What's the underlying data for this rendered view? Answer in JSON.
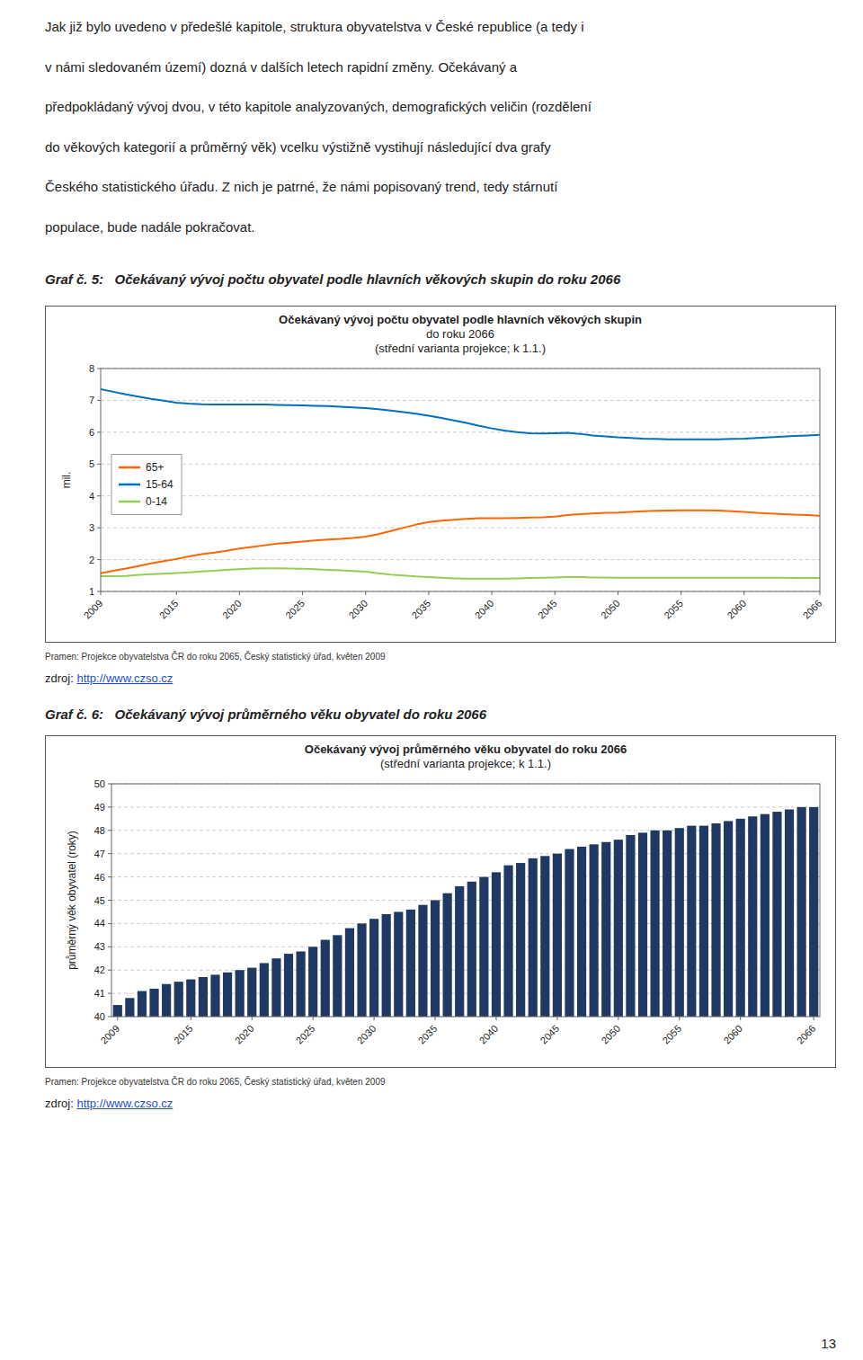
{
  "paragraph": [
    "Jak již bylo uvedeno v předešlé kapitole, struktura obyvatelstva v České republice (a tedy i",
    "v námi sledovaném území) dozná v dalších letech rapidní změny. Očekávaný a",
    "předpokládaný vývoj dvou, v této kapitole analyzovaných, demografických veličin (rozdělení",
    "do věkových kategorií a průměrný věk) vcelku výstižně vystihují následující dva grafy",
    "Českého statistického úřadu. Z nich je patrné, že námi popisovaný trend, tedy stárnutí",
    "populace, bude nadále pokračovat."
  ],
  "page_number": "13",
  "chart_data": [
    {
      "type": "line",
      "caption": "Graf č. 5:   Očekávaný vývoj počtu obyvatel podle hlavních věkových skupin do roku 2066",
      "title": [
        "Očekávaný vývoj počtu obyvatel podle hlavních věkových skupin",
        "do roku 2066",
        "(střední varianta projekce; k 1.1.)"
      ],
      "ylabel": "mil.",
      "source": "Pramen: Projekce obyvatelstva ČR do roku 2065, Český statistický úřad, květen 2009",
      "link_label": "zdroj: ",
      "link": "http://www.czso.cz",
      "x": [
        2009,
        2010,
        2011,
        2012,
        2013,
        2014,
        2015,
        2016,
        2017,
        2018,
        2019,
        2020,
        2021,
        2022,
        2023,
        2024,
        2025,
        2026,
        2027,
        2028,
        2029,
        2030,
        2031,
        2032,
        2033,
        2034,
        2035,
        2036,
        2037,
        2038,
        2039,
        2040,
        2041,
        2042,
        2043,
        2044,
        2045,
        2046,
        2047,
        2048,
        2049,
        2050,
        2051,
        2052,
        2053,
        2054,
        2055,
        2056,
        2057,
        2058,
        2059,
        2060,
        2061,
        2062,
        2063,
        2064,
        2065,
        2066
      ],
      "xlim": [
        2009,
        2066
      ],
      "xticks": [
        2009,
        2015,
        2020,
        2025,
        2030,
        2035,
        2040,
        2045,
        2050,
        2055,
        2060,
        2066
      ],
      "ylim": [
        1,
        8
      ],
      "yticks": [
        1,
        2,
        3,
        4,
        5,
        6,
        7,
        8
      ],
      "grid": true,
      "legend": "left",
      "series": [
        {
          "name": "65+",
          "color": "#FF6600",
          "values": [
            1.57,
            1.65,
            1.72,
            1.8,
            1.88,
            1.95,
            2.02,
            2.1,
            2.17,
            2.22,
            2.28,
            2.35,
            2.4,
            2.45,
            2.5,
            2.53,
            2.57,
            2.6,
            2.63,
            2.65,
            2.68,
            2.72,
            2.8,
            2.9,
            3.0,
            3.1,
            3.18,
            3.22,
            3.25,
            3.28,
            3.3,
            3.3,
            3.3,
            3.31,
            3.32,
            3.33,
            3.35,
            3.4,
            3.43,
            3.45,
            3.47,
            3.48,
            3.5,
            3.52,
            3.53,
            3.54,
            3.55,
            3.55,
            3.55,
            3.54,
            3.52,
            3.5,
            3.47,
            3.45,
            3.43,
            3.41,
            3.4,
            3.38
          ]
        },
        {
          "name": "15-64",
          "color": "#0070C0",
          "values": [
            7.35,
            7.27,
            7.19,
            7.12,
            7.05,
            6.99,
            6.93,
            6.9,
            6.88,
            6.87,
            6.87,
            6.87,
            6.87,
            6.87,
            6.86,
            6.85,
            6.84,
            6.83,
            6.82,
            6.8,
            6.78,
            6.76,
            6.72,
            6.68,
            6.63,
            6.58,
            6.52,
            6.45,
            6.37,
            6.29,
            6.2,
            6.12,
            6.05,
            6.0,
            5.97,
            5.96,
            5.97,
            5.98,
            5.95,
            5.9,
            5.87,
            5.84,
            5.82,
            5.8,
            5.79,
            5.78,
            5.78,
            5.78,
            5.78,
            5.78,
            5.79,
            5.8,
            5.82,
            5.84,
            5.86,
            5.88,
            5.9,
            5.92
          ]
        },
        {
          "name": "0-14",
          "color": "#92D050",
          "values": [
            1.48,
            1.48,
            1.49,
            1.52,
            1.54,
            1.56,
            1.58,
            1.6,
            1.63,
            1.65,
            1.68,
            1.7,
            1.72,
            1.73,
            1.73,
            1.72,
            1.71,
            1.7,
            1.68,
            1.66,
            1.64,
            1.62,
            1.57,
            1.53,
            1.5,
            1.47,
            1.45,
            1.43,
            1.41,
            1.4,
            1.4,
            1.4,
            1.4,
            1.41,
            1.42,
            1.43,
            1.44,
            1.45,
            1.45,
            1.44,
            1.44,
            1.43,
            1.43,
            1.43,
            1.43,
            1.43,
            1.43,
            1.43,
            1.43,
            1.43,
            1.43,
            1.43,
            1.43,
            1.43,
            1.43,
            1.42,
            1.42,
            1.42
          ]
        }
      ]
    },
    {
      "type": "bar",
      "caption": "Graf č. 6:   Očekávaný vývoj průměrného věku obyvatel do roku 2066",
      "title": [
        "Očekávaný vývoj průměrného věku obyvatel do roku 2066",
        "(střední varianta projekce; k 1.1.)"
      ],
      "ylabel": "průměrný věk obyvatel (roky)",
      "source": "Pramen: Projekce obyvatelstva ČR do roku 2065, Český statistický úřad, květen 2009",
      "link_label": "zdroj: ",
      "link": "http://www.czso.cz",
      "x": [
        2009,
        2010,
        2011,
        2012,
        2013,
        2014,
        2015,
        2016,
        2017,
        2018,
        2019,
        2020,
        2021,
        2022,
        2023,
        2024,
        2025,
        2026,
        2027,
        2028,
        2029,
        2030,
        2031,
        2032,
        2033,
        2034,
        2035,
        2036,
        2037,
        2038,
        2039,
        2040,
        2041,
        2042,
        2043,
        2044,
        2045,
        2046,
        2047,
        2048,
        2049,
        2050,
        2051,
        2052,
        2053,
        2054,
        2055,
        2056,
        2057,
        2058,
        2059,
        2060,
        2061,
        2062,
        2063,
        2064,
        2065,
        2066
      ],
      "values": [
        40.5,
        40.8,
        41.1,
        41.2,
        41.4,
        41.5,
        41.6,
        41.7,
        41.8,
        41.9,
        42.0,
        42.1,
        42.3,
        42.5,
        42.7,
        42.8,
        43.0,
        43.3,
        43.5,
        43.8,
        44.0,
        44.2,
        44.4,
        44.5,
        44.6,
        44.8,
        45.0,
        45.3,
        45.6,
        45.8,
        46.0,
        46.2,
        46.5,
        46.6,
        46.8,
        46.9,
        47.0,
        47.2,
        47.3,
        47.4,
        47.5,
        47.6,
        47.8,
        47.9,
        48.0,
        48.0,
        48.1,
        48.2,
        48.2,
        48.3,
        48.4,
        48.5,
        48.6,
        48.7,
        48.8,
        48.9,
        49.0,
        49.0
      ],
      "color": "#1F3864",
      "xlim": [
        2008.5,
        2066.5
      ],
      "xticks": [
        2009,
        2015,
        2020,
        2025,
        2030,
        2035,
        2040,
        2045,
        2050,
        2055,
        2060,
        2066
      ],
      "ylim": [
        40,
        50
      ],
      "yticks": [
        40,
        41,
        42,
        43,
        44,
        45,
        46,
        47,
        48,
        49,
        50
      ],
      "grid": true
    }
  ]
}
